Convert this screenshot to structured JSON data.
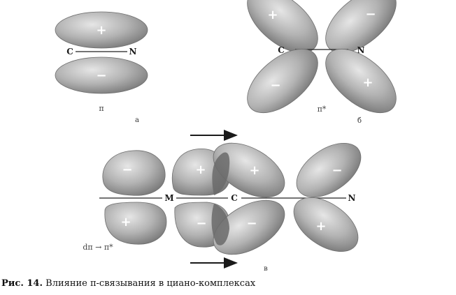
{
  "panel_a": {
    "atoms": [
      "C",
      "N"
    ],
    "signs": [
      "+",
      "−"
    ],
    "orbital_label": "π",
    "panel_letter": "а"
  },
  "panel_b": {
    "atoms": [
      "C",
      "N"
    ],
    "signs": [
      "+",
      "−",
      "−",
      "+"
    ],
    "orbital_label": "π*",
    "panel_letter": "б"
  },
  "panel_c": {
    "atoms": [
      "M",
      "C",
      "N"
    ],
    "signs_top": [
      "−",
      "+",
      "+",
      "−"
    ],
    "signs_bottom": [
      "+",
      "−",
      "−",
      "+"
    ],
    "transition_label": "dπ → π*",
    "panel_letter": "в"
  },
  "caption": {
    "prefix": "Рис. 14.",
    "text": " Влияние π-связывания в циано-комплексах"
  },
  "colors": {
    "lobe_light": "#d8d8d8",
    "lobe_dark": "#7d7d7d",
    "overlap": "#5f5f5f",
    "line": "#222222"
  }
}
